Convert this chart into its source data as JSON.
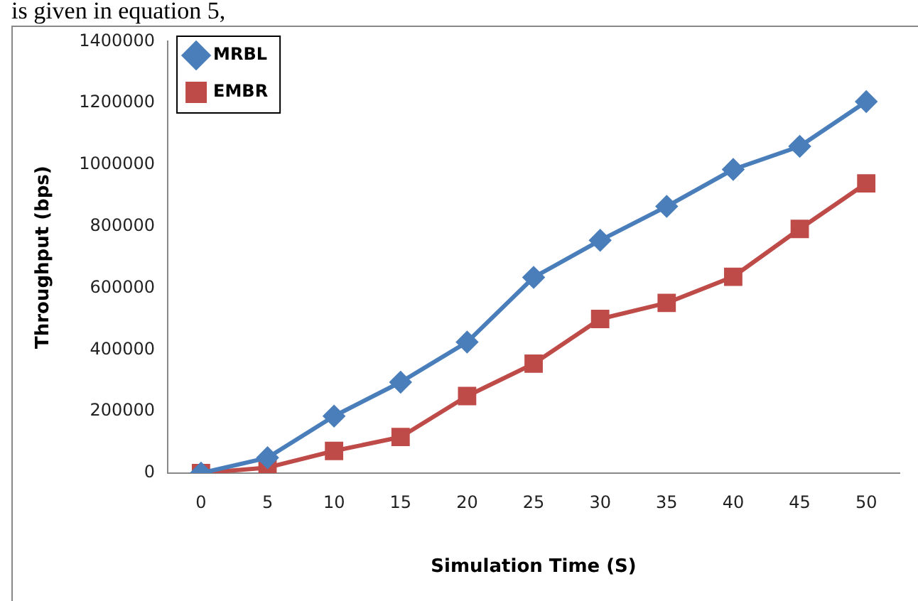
{
  "chart_data": {
    "type": "line",
    "xlabel": "Simulation Time (S)",
    "ylabel": "Throughput (bps)",
    "annotations": [
      "is given in equation 5,"
    ],
    "categories": [
      "0",
      "5",
      "10",
      "15",
      "20",
      "25",
      "30",
      "35",
      "40",
      "45",
      "50"
    ],
    "series": [
      {
        "name": "MRBL",
        "color": "#4a7ebb",
        "marker": "diamond",
        "values": [
          0,
          50000,
          185000,
          295000,
          425000,
          635000,
          755000,
          865000,
          985000,
          1060000,
          1205000
        ]
      },
      {
        "name": "EMBR",
        "color": "#be4b48",
        "marker": "square",
        "values": [
          0,
          18000,
          72000,
          117000,
          250000,
          355000,
          500000,
          552000,
          637000,
          792000,
          940000
        ]
      }
    ],
    "ylim": [
      0,
      1400000
    ],
    "yticks": [
      0,
      200000,
      400000,
      600000,
      800000,
      1000000,
      1200000,
      1400000
    ],
    "grid": false,
    "legend": "top"
  }
}
